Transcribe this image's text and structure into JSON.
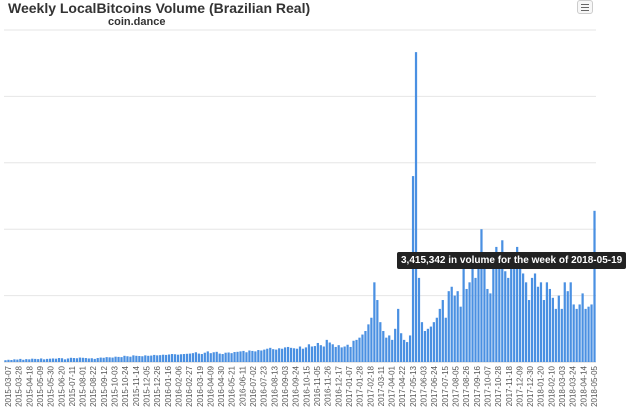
{
  "chart_data": {
    "type": "bar",
    "title": "Weekly LocalBitcoins Volume (Brazilian Real)",
    "subtitle": "coin.dance",
    "xlabel": "",
    "ylabel": "",
    "ylim": [
      0,
      7500000
    ],
    "grid": "horizontal",
    "legend": "none",
    "bar_color": "#4a90e2",
    "x_tick_labels": [
      "2015-03-07",
      "2015-03-28",
      "2015-04-18",
      "2015-05-09",
      "2015-05-30",
      "2015-06-20",
      "2015-07-11",
      "2015-08-01",
      "2015-08-22",
      "2015-09-12",
      "2015-10-03",
      "2015-10-24",
      "2015-11-14",
      "2015-12-05",
      "2015-12-26",
      "2016-01-16",
      "2016-02-06",
      "2016-02-27",
      "2016-03-19",
      "2016-04-09",
      "2016-04-30",
      "2016-05-21",
      "2016-06-11",
      "2016-07-02",
      "2016-07-23",
      "2016-08-13",
      "2016-09-03",
      "2016-09-24",
      "2016-10-15",
      "2016-11-05",
      "2016-11-26",
      "2016-12-17",
      "2017-01-07",
      "2017-01-28",
      "2017-02-18",
      "2017-03-11",
      "2017-04-01",
      "2017-04-22",
      "2017-05-13",
      "2017-06-03",
      "2017-06-24",
      "2017-07-15",
      "2017-08-05",
      "2017-08-26",
      "2017-09-16",
      "2017-10-07",
      "2017-10-28",
      "2017-11-18",
      "2017-12-09",
      "2017-12-30",
      "2018-01-20",
      "2018-02-10",
      "2018-03-03",
      "2018-03-24",
      "2018-04-14",
      "2018-05-05"
    ],
    "values": [
      40000,
      50000,
      45000,
      60000,
      55000,
      70000,
      50000,
      65000,
      60000,
      75000,
      70000,
      65000,
      80000,
      60000,
      70000,
      75000,
      80000,
      75000,
      90000,
      85000,
      60000,
      80000,
      95000,
      90000,
      85000,
      100000,
      95000,
      90000,
      80000,
      85000,
      70000,
      90000,
      100000,
      95000,
      110000,
      105000,
      100000,
      120000,
      115000,
      110000,
      140000,
      130000,
      120000,
      150000,
      140000,
      135000,
      130000,
      150000,
      140000,
      145000,
      160000,
      150000,
      155000,
      165000,
      160000,
      170000,
      180000,
      175000,
      165000,
      175000,
      180000,
      185000,
      190000,
      200000,
      220000,
      190000,
      180000,
      210000,
      240000,
      200000,
      220000,
      230000,
      190000,
      180000,
      210000,
      215000,
      200000,
      225000,
      230000,
      240000,
      250000,
      220000,
      260000,
      250000,
      240000,
      270000,
      260000,
      280000,
      300000,
      320000,
      290000,
      280000,
      310000,
      300000,
      330000,
      340000,
      320000,
      310000,
      300000,
      350000,
      300000,
      330000,
      400000,
      350000,
      360000,
      430000,
      380000,
      350000,
      500000,
      440000,
      400000,
      340000,
      380000,
      330000,
      350000,
      390000,
      340000,
      480000,
      500000,
      550000,
      620000,
      700000,
      850000,
      1000000,
      1800000,
      1400000,
      900000,
      700000,
      550000,
      600000,
      500000,
      750000,
      1200000,
      650000,
      500000,
      450000,
      600000,
      4200000,
      7000000,
      1900000,
      900000,
      700000,
      750000,
      800000,
      900000,
      1000000,
      1200000,
      1400000,
      1000000,
      1600000,
      1700000,
      1500000,
      1600000,
      1250000,
      2350000,
      1650000,
      1800000,
      2200000,
      1900000,
      2300000,
      3000000,
      2400000,
      1650000,
      1550000,
      2350000,
      2600000,
      2100000,
      2750000,
      2050000,
      1900000,
      2200000,
      2100000,
      2600000,
      2250000,
      2000000,
      1800000,
      1400000,
      1900000,
      2000000,
      1700000,
      1800000,
      1400000,
      1800000,
      1650000,
      1450000,
      1200000,
      1500000,
      1200000,
      1800000,
      1600000,
      1800000,
      1300000,
      1200000,
      1300000,
      1550000,
      1200000,
      1250000,
      1300000,
      3415342
    ],
    "annotation": "3,415,342 in volume for the week of 2018-05-19"
  }
}
